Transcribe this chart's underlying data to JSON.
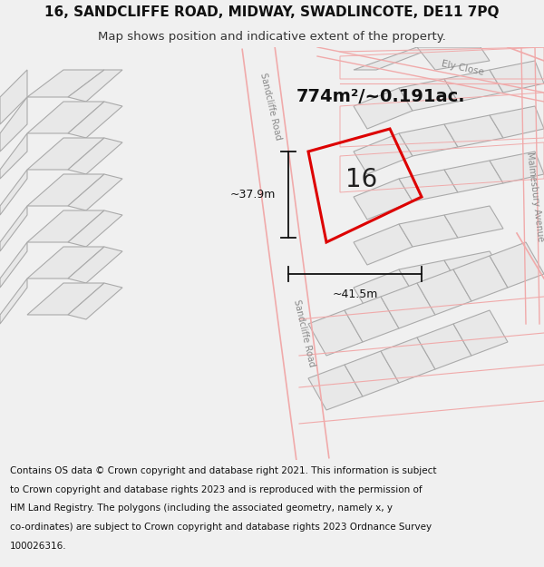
{
  "title_line1": "16, SANDCLIFFE ROAD, MIDWAY, SWADLINCOTE, DE11 7PQ",
  "title_line2": "Map shows position and indicative extent of the property.",
  "area_text": "774m²/~0.191ac.",
  "property_number": "16",
  "dim_vertical": "~37.9m",
  "dim_horizontal": "~41.5m",
  "footer_lines": [
    "Contains OS data © Crown copyright and database right 2021. This information is subject",
    "to Crown copyright and database rights 2023 and is reproduced with the permission of",
    "HM Land Registry. The polygons (including the associated geometry, namely x, y",
    "co-ordinates) are subject to Crown copyright and database rights 2023 Ordnance Survey",
    "100026316."
  ],
  "bg_color": "#f0f0f0",
  "map_bg_color": "#ffffff",
  "building_fill_color": "#e8e8e8",
  "building_edge_color": "#aaaaaa",
  "road_line_color": "#f0aaaa",
  "property_outline_color": "#dd0000",
  "dim_line_color": "#111111",
  "road_label_color": "#888888",
  "title_fontsize": 11,
  "subtitle_fontsize": 9.5,
  "footer_fontsize": 7.5,
  "number_fontsize": 20,
  "area_fontsize": 14
}
